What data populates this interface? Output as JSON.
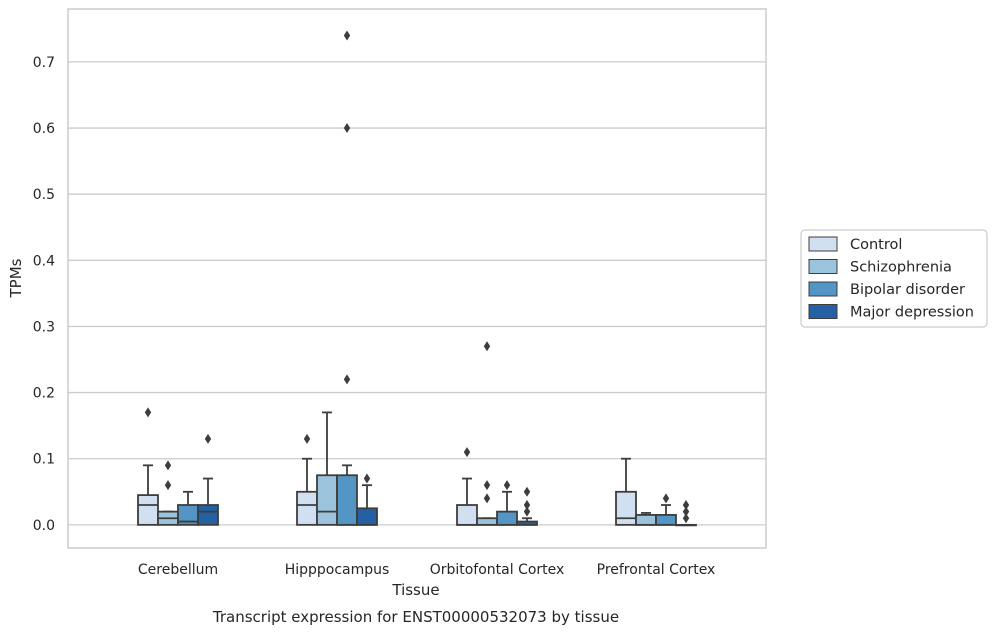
{
  "chart_data": {
    "type": "box",
    "title": "Transcript expression for ENST00000532073 by tissue",
    "xlabel": "Tissue",
    "ylabel": "TPMs",
    "ylim": [
      -0.035,
      0.78
    ],
    "yticks": [
      "0.0",
      "0.1",
      "0.2",
      "0.3",
      "0.4",
      "0.5",
      "0.6",
      "0.7"
    ],
    "categories": [
      "Cerebellum",
      "Hipppocampus",
      "Orbitofontal Cortex",
      "Prefrontal Cortex"
    ],
    "grid": true,
    "legend": {
      "placement": "right",
      "entries": [
        "Control",
        "Schizophrenia",
        "Bipolar disorder",
        "Major depression"
      ]
    },
    "colors": [
      "#d1e0f0",
      "#9cc3dc",
      "#5396c5",
      "#2460a2"
    ],
    "edge_color": "#3d3d3d",
    "series": [
      {
        "name": "Control",
        "boxes": [
          {
            "q1": 0,
            "median": 0.03,
            "q3": 0.045,
            "whislo": 0,
            "whishi": 0.09,
            "fliers": [
              0.17
            ]
          },
          {
            "q1": 0,
            "median": 0.03,
            "q3": 0.05,
            "whislo": 0,
            "whishi": 0.1,
            "fliers": [
              0.13
            ]
          },
          {
            "q1": 0,
            "median": 0,
            "q3": 0.03,
            "whislo": 0,
            "whishi": 0.07,
            "fliers": [
              0.11
            ]
          },
          {
            "q1": 0,
            "median": 0.01,
            "q3": 0.05,
            "whislo": 0,
            "whishi": 0.1,
            "fliers": []
          }
        ]
      },
      {
        "name": "Schizophrenia",
        "boxes": [
          {
            "q1": 0,
            "median": 0.01,
            "q3": 0.02,
            "whislo": 0,
            "whishi": 0.02,
            "fliers": [
              0.06,
              0.09
            ]
          },
          {
            "q1": 0,
            "median": 0.02,
            "q3": 0.075,
            "whislo": 0,
            "whishi": 0.17,
            "fliers": []
          },
          {
            "q1": 0,
            "median": 0,
            "q3": 0.01,
            "whislo": 0,
            "whishi": 0.01,
            "fliers": [
              0.04,
              0.06,
              0.27
            ]
          },
          {
            "q1": 0,
            "median": 0,
            "q3": 0.015,
            "whislo": 0,
            "whishi": 0.018,
            "fliers": []
          }
        ]
      },
      {
        "name": "Bipolar disorder",
        "boxes": [
          {
            "q1": 0,
            "median": 0.005,
            "q3": 0.03,
            "whislo": 0,
            "whishi": 0.05,
            "fliers": []
          },
          {
            "q1": 0,
            "median": 0,
            "q3": 0.075,
            "whislo": 0,
            "whishi": 0.09,
            "fliers": [
              0.22,
              0.6,
              0.74
            ]
          },
          {
            "q1": 0,
            "median": 0,
            "q3": 0.02,
            "whislo": 0,
            "whishi": 0.05,
            "fliers": [
              0.06
            ]
          },
          {
            "q1": 0,
            "median": 0,
            "q3": 0.015,
            "whislo": 0,
            "whishi": 0.03,
            "fliers": [
              0.04
            ]
          }
        ]
      },
      {
        "name": "Major depression",
        "boxes": [
          {
            "q1": 0,
            "median": 0.02,
            "q3": 0.03,
            "whislo": 0,
            "whishi": 0.07,
            "fliers": [
              0.13
            ]
          },
          {
            "q1": 0,
            "median": 0,
            "q3": 0.025,
            "whislo": 0,
            "whishi": 0.06,
            "fliers": [
              0.07
            ]
          },
          {
            "q1": 0,
            "median": 0,
            "q3": 0.005,
            "whislo": 0,
            "whishi": 0.01,
            "fliers": [
              0.02,
              0.03,
              0.05
            ]
          },
          {
            "q1": 0,
            "median": 0,
            "q3": 0,
            "whislo": 0,
            "whishi": 0,
            "fliers": [
              0.01,
              0.02,
              0.03
            ]
          }
        ]
      }
    ]
  }
}
